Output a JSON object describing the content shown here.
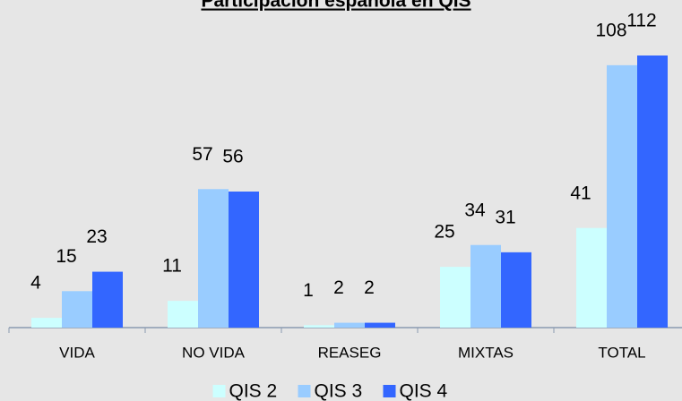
{
  "chart_data": {
    "type": "bar",
    "title": "Participación española en QIS",
    "categories": [
      "VIDA",
      "NO VIDA",
      "REASEG",
      "MIXTAS",
      "TOTAL"
    ],
    "series": [
      {
        "name": "QIS 2",
        "color": "#ccffff",
        "values": [
          4,
          11,
          1,
          25,
          41
        ]
      },
      {
        "name": "QIS 3",
        "color": "#99ccff",
        "values": [
          15,
          57,
          2,
          34,
          108
        ]
      },
      {
        "name": "QIS 4",
        "color": "#3366ff",
        "values": [
          23,
          56,
          2,
          31,
          112
        ]
      }
    ],
    "legend": "bottom"
  }
}
